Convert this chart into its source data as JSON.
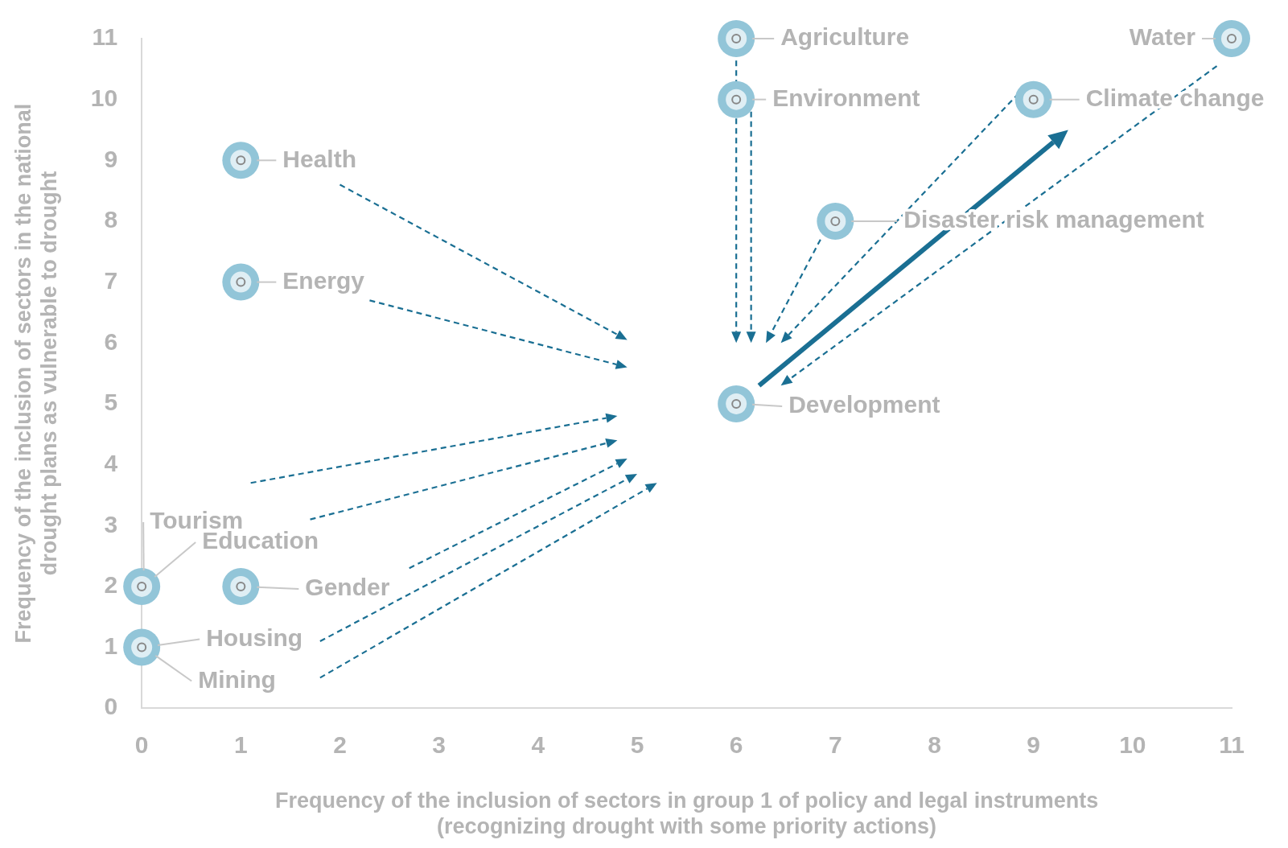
{
  "chart_data": {
    "type": "scatter",
    "xlabel": "Frequency of the inclusion of sectors in group 1 of policy and legal instruments (recognizing drought with some priority actions)",
    "ylabel": "Frequency of the inclusion of sectors in the national drought plans as vulnerable to drought",
    "xlim": [
      0,
      11
    ],
    "ylim": [
      0,
      11
    ],
    "xticks": [
      0,
      1,
      2,
      3,
      4,
      5,
      6,
      7,
      8,
      9,
      10,
      11
    ],
    "yticks": [
      0,
      1,
      2,
      3,
      4,
      5,
      6,
      7,
      8,
      9,
      10,
      11
    ],
    "grid": false,
    "legend": false,
    "marker": "circle",
    "series": [
      {
        "color": "#92c5d8",
        "x": [
          6,
          11,
          6,
          9,
          1,
          7,
          1,
          6,
          0,
          1,
          0
        ],
        "values": [
          11,
          11,
          10,
          10,
          9,
          8,
          7,
          5,
          2,
          2,
          1
        ]
      }
    ],
    "annotations": [
      {
        "text": "Agriculture",
        "x": 6,
        "y": 11
      },
      {
        "text": "Water",
        "x": 11,
        "y": 11
      },
      {
        "text": "Environment",
        "x": 6,
        "y": 10
      },
      {
        "text": "Climate change",
        "x": 9,
        "y": 10
      },
      {
        "text": "Health",
        "x": 1,
        "y": 9
      },
      {
        "text": "Disaster risk management",
        "x": 7,
        "y": 8
      },
      {
        "text": "Energy",
        "x": 1,
        "y": 7
      },
      {
        "text": "Development",
        "x": 6,
        "y": 5
      },
      {
        "text": "Tourism",
        "x": 0,
        "y": 2
      },
      {
        "text": "Education",
        "x": 0,
        "y": 2
      },
      {
        "text": "Gender",
        "x": 1,
        "y": 2
      },
      {
        "text": "Housing",
        "x": 0,
        "y": 1
      },
      {
        "text": "Mining",
        "x": 0,
        "y": 1
      }
    ]
  }
}
